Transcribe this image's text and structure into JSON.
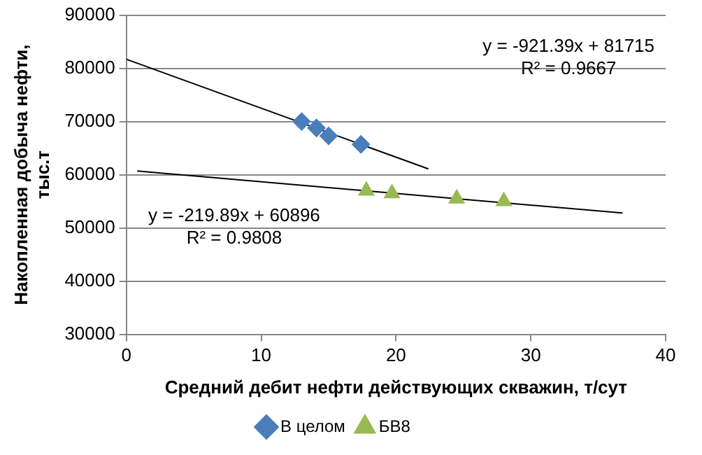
{
  "chart_data": {
    "type": "scatter",
    "xlabel": "Средний дебит нефти действующих скважин, т/сут",
    "ylabel": "Накопленная добыча нефти, тыс.т",
    "xlim": [
      0,
      40
    ],
    "xticks": [
      0,
      10,
      20,
      30,
      40
    ],
    "ylim": [
      30000,
      90000
    ],
    "yticks": [
      30000,
      40000,
      50000,
      60000,
      70000,
      80000,
      90000
    ],
    "grid": "y",
    "legend": "bottom",
    "series": [
      {
        "name": "В целом",
        "color": "#4a7ebb",
        "marker": "diamond",
        "x": [
          13,
          14.1,
          15,
          17.4
        ],
        "values": [
          70000,
          68800,
          67300,
          65700
        ]
      },
      {
        "name": "БВ8",
        "color": "#98b954",
        "marker": "triangle",
        "x": [
          17.8,
          19.7,
          24.5,
          28
        ],
        "values": [
          57000,
          56500,
          55500,
          55000
        ]
      },
      {
        "type": "line",
        "color": "#000000",
        "marker": "none",
        "x": [
          0,
          22.4
        ],
        "values": [
          81700,
          61100
        ]
      },
      {
        "type": "line",
        "color": "#000000",
        "marker": "none",
        "x": [
          0.8,
          36.8
        ],
        "values": [
          60700,
          52800
        ]
      }
    ],
    "annotations": [
      "y = -921.39x + 81715\nR² = 0.9667",
      "y = -219.89x + 60896\nR² = 0.9808"
    ]
  }
}
